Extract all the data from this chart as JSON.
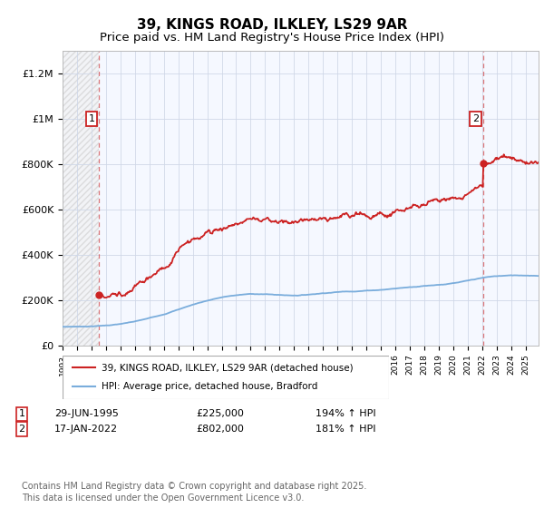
{
  "title": "39, KINGS ROAD, ILKLEY, LS29 9AR",
  "subtitle": "Price paid vs. HM Land Registry's House Price Index (HPI)",
  "ylim": [
    0,
    1300000
  ],
  "yticks": [
    0,
    200000,
    400000,
    600000,
    800000,
    1000000,
    1200000
  ],
  "ytick_labels": [
    "£0",
    "£200K",
    "£400K",
    "£600K",
    "£800K",
    "£1M",
    "£1.2M"
  ],
  "hpi_color": "#7aaddc",
  "price_color": "#cc2222",
  "annotation1_date": "29-JUN-1995",
  "annotation1_price": 225000,
  "annotation1_hpi_pct": "194% ↑ HPI",
  "annotation2_date": "17-JAN-2022",
  "annotation2_price": 802000,
  "annotation2_hpi_pct": "181% ↑ HPI",
  "legend_line1": "39, KINGS ROAD, ILKLEY, LS29 9AR (detached house)",
  "legend_line2": "HPI: Average price, detached house, Bradford",
  "footer": "Contains HM Land Registry data © Crown copyright and database right 2025.\nThis data is licensed under the Open Government Licence v3.0.",
  "background_color": "#ffffff",
  "grid_color": "#d0d8e8",
  "title_fontsize": 11,
  "subtitle_fontsize": 9.5,
  "axis_fontsize": 8,
  "footer_fontsize": 7,
  "sale1_year": 1995.5,
  "sale2_year": 2022.05,
  "xmin": 1993.0,
  "xmax": 2025.9
}
